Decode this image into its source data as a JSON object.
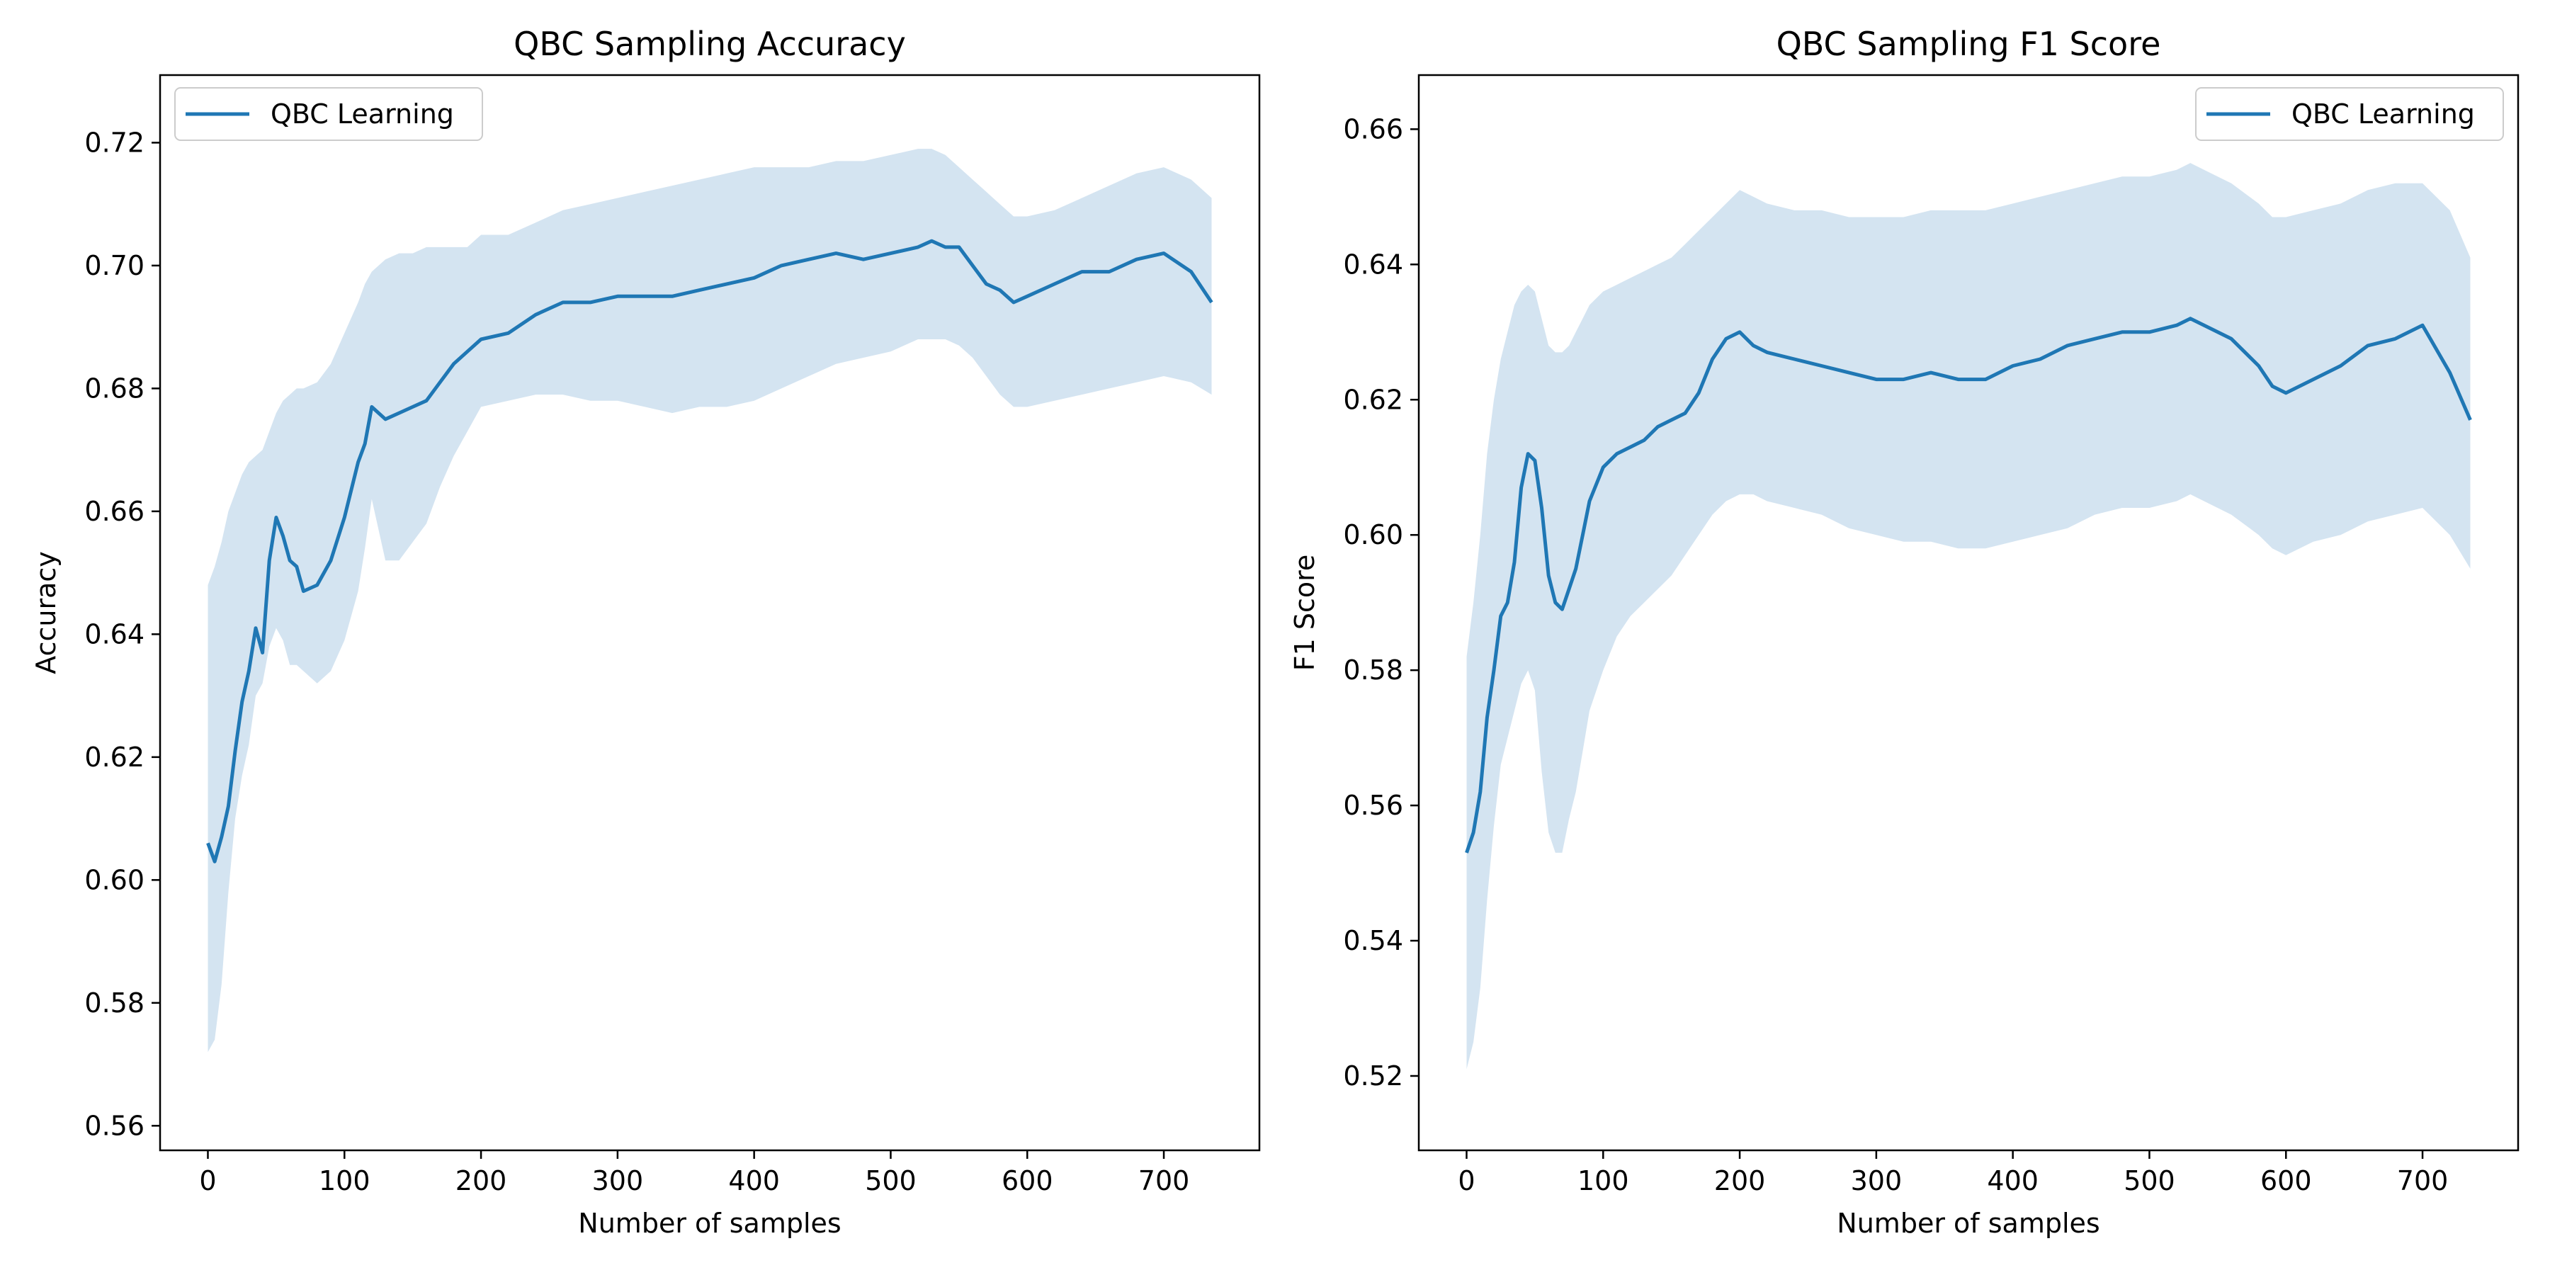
{
  "charts": [
    {
      "title": "QBC Sampling Accuracy",
      "xlabel": "Number of samples",
      "ylabel": "Accuracy",
      "legend_label": "QBC Learning",
      "legend_position": "upper-left",
      "xticks": [
        "0",
        "100",
        "200",
        "300",
        "400",
        "500",
        "600",
        "700"
      ],
      "yticks": [
        "0.56",
        "0.58",
        "0.60",
        "0.62",
        "0.64",
        "0.66",
        "0.68",
        "0.70",
        "0.72"
      ]
    },
    {
      "title": "QBC Sampling F1 Score",
      "xlabel": "Number of samples",
      "ylabel": "F1 Score",
      "legend_label": "QBC Learning",
      "legend_position": "upper-right",
      "xticks": [
        "0",
        "100",
        "200",
        "300",
        "400",
        "500",
        "600",
        "700"
      ],
      "yticks": [
        "0.52",
        "0.54",
        "0.56",
        "0.58",
        "0.60",
        "0.62",
        "0.64",
        "0.66"
      ]
    }
  ],
  "chart_data": [
    {
      "type": "line",
      "title": "QBC Sampling Accuracy",
      "xlabel": "Number of samples",
      "ylabel": "Accuracy",
      "xlim": [
        -35,
        770
      ],
      "ylim": [
        0.556,
        0.731
      ],
      "grid": false,
      "legend": "upper-left",
      "color": "#1f77b4",
      "band_color": "#d4e4f1",
      "series": [
        {
          "name": "QBC Learning",
          "x": [
            0,
            5,
            10,
            15,
            20,
            25,
            30,
            35,
            40,
            45,
            50,
            55,
            60,
            65,
            70,
            80,
            90,
            100,
            110,
            115,
            120,
            130,
            140,
            150,
            160,
            170,
            180,
            190,
            200,
            220,
            240,
            260,
            280,
            300,
            320,
            340,
            360,
            380,
            400,
            420,
            440,
            460,
            480,
            500,
            520,
            530,
            540,
            550,
            560,
            570,
            580,
            590,
            600,
            620,
            640,
            660,
            680,
            700,
            720,
            735
          ],
          "y": [
            0.606,
            0.603,
            0.607,
            0.612,
            0.621,
            0.629,
            0.634,
            0.641,
            0.637,
            0.652,
            0.659,
            0.656,
            0.652,
            0.651,
            0.647,
            0.648,
            0.652,
            0.659,
            0.668,
            0.671,
            0.677,
            0.675,
            0.676,
            0.677,
            0.678,
            0.681,
            0.684,
            0.686,
            0.688,
            0.689,
            0.692,
            0.694,
            0.694,
            0.695,
            0.695,
            0.695,
            0.696,
            0.697,
            0.698,
            0.7,
            0.701,
            0.702,
            0.701,
            0.702,
            0.703,
            0.704,
            0.703,
            0.703,
            0.7,
            0.697,
            0.696,
            0.694,
            0.695,
            0.697,
            0.699,
            0.699,
            0.701,
            0.702,
            0.699,
            0.694
          ],
          "lower": [
            0.572,
            0.574,
            0.583,
            0.598,
            0.61,
            0.617,
            0.622,
            0.63,
            0.632,
            0.638,
            0.641,
            0.639,
            0.635,
            0.635,
            0.634,
            0.632,
            0.634,
            0.639,
            0.647,
            0.654,
            0.662,
            0.652,
            0.652,
            0.655,
            0.658,
            0.664,
            0.669,
            0.673,
            0.677,
            0.678,
            0.679,
            0.679,
            0.678,
            0.678,
            0.677,
            0.676,
            0.677,
            0.677,
            0.678,
            0.68,
            0.682,
            0.684,
            0.685,
            0.686,
            0.688,
            0.688,
            0.688,
            0.687,
            0.685,
            0.682,
            0.679,
            0.677,
            0.677,
            0.678,
            0.679,
            0.68,
            0.681,
            0.682,
            0.681,
            0.679
          ],
          "upper": [
            0.648,
            0.651,
            0.655,
            0.66,
            0.663,
            0.666,
            0.668,
            0.669,
            0.67,
            0.673,
            0.676,
            0.678,
            0.679,
            0.68,
            0.68,
            0.681,
            0.684,
            0.689,
            0.694,
            0.697,
            0.699,
            0.701,
            0.702,
            0.702,
            0.703,
            0.703,
            0.703,
            0.703,
            0.705,
            0.705,
            0.707,
            0.709,
            0.71,
            0.711,
            0.712,
            0.713,
            0.714,
            0.715,
            0.716,
            0.716,
            0.716,
            0.717,
            0.717,
            0.718,
            0.719,
            0.719,
            0.718,
            0.716,
            0.714,
            0.712,
            0.71,
            0.708,
            0.708,
            0.709,
            0.711,
            0.713,
            0.715,
            0.716,
            0.714,
            0.711
          ]
        }
      ]
    },
    {
      "type": "line",
      "title": "QBC Sampling F1 Score",
      "xlabel": "Number of samples",
      "ylabel": "F1 Score",
      "xlim": [
        -35,
        770
      ],
      "ylim": [
        0.509,
        0.668
      ],
      "grid": false,
      "legend": "upper-right",
      "color": "#1f77b4",
      "band_color": "#d4e4f1",
      "series": [
        {
          "name": "QBC Learning",
          "x": [
            0,
            5,
            10,
            15,
            20,
            25,
            30,
            35,
            40,
            45,
            50,
            55,
            60,
            65,
            70,
            75,
            80,
            85,
            90,
            100,
            110,
            120,
            130,
            140,
            150,
            160,
            170,
            180,
            190,
            200,
            210,
            220,
            240,
            260,
            280,
            300,
            320,
            340,
            360,
            380,
            400,
            420,
            440,
            460,
            480,
            500,
            520,
            530,
            540,
            560,
            580,
            590,
            600,
            620,
            640,
            660,
            680,
            700,
            720,
            735
          ],
          "y": [
            0.553,
            0.556,
            0.562,
            0.573,
            0.58,
            0.588,
            0.59,
            0.596,
            0.607,
            0.612,
            0.611,
            0.604,
            0.594,
            0.59,
            0.589,
            0.592,
            0.595,
            0.6,
            0.605,
            0.61,
            0.612,
            0.613,
            0.614,
            0.616,
            0.617,
            0.618,
            0.621,
            0.626,
            0.629,
            0.63,
            0.628,
            0.627,
            0.626,
            0.625,
            0.624,
            0.623,
            0.623,
            0.624,
            0.623,
            0.623,
            0.625,
            0.626,
            0.628,
            0.629,
            0.63,
            0.63,
            0.631,
            0.632,
            0.631,
            0.629,
            0.625,
            0.622,
            0.621,
            0.623,
            0.625,
            0.628,
            0.629,
            0.631,
            0.624,
            0.617
          ],
          "lower": [
            0.521,
            0.525,
            0.533,
            0.546,
            0.557,
            0.566,
            0.57,
            0.574,
            0.578,
            0.58,
            0.577,
            0.565,
            0.556,
            0.553,
            0.553,
            0.558,
            0.562,
            0.568,
            0.574,
            0.58,
            0.585,
            0.588,
            0.59,
            0.592,
            0.594,
            0.597,
            0.6,
            0.603,
            0.605,
            0.606,
            0.606,
            0.605,
            0.604,
            0.603,
            0.601,
            0.6,
            0.599,
            0.599,
            0.598,
            0.598,
            0.599,
            0.6,
            0.601,
            0.603,
            0.604,
            0.604,
            0.605,
            0.606,
            0.605,
            0.603,
            0.6,
            0.598,
            0.597,
            0.599,
            0.6,
            0.602,
            0.603,
            0.604,
            0.6,
            0.595
          ],
          "upper": [
            0.582,
            0.59,
            0.6,
            0.612,
            0.62,
            0.626,
            0.63,
            0.634,
            0.636,
            0.637,
            0.636,
            0.632,
            0.628,
            0.627,
            0.627,
            0.628,
            0.63,
            0.632,
            0.634,
            0.636,
            0.637,
            0.638,
            0.639,
            0.64,
            0.641,
            0.643,
            0.645,
            0.647,
            0.649,
            0.651,
            0.65,
            0.649,
            0.648,
            0.648,
            0.647,
            0.647,
            0.647,
            0.648,
            0.648,
            0.648,
            0.649,
            0.65,
            0.651,
            0.652,
            0.653,
            0.653,
            0.654,
            0.655,
            0.654,
            0.652,
            0.649,
            0.647,
            0.647,
            0.648,
            0.649,
            0.651,
            0.652,
            0.652,
            0.648,
            0.641
          ]
        }
      ]
    }
  ]
}
